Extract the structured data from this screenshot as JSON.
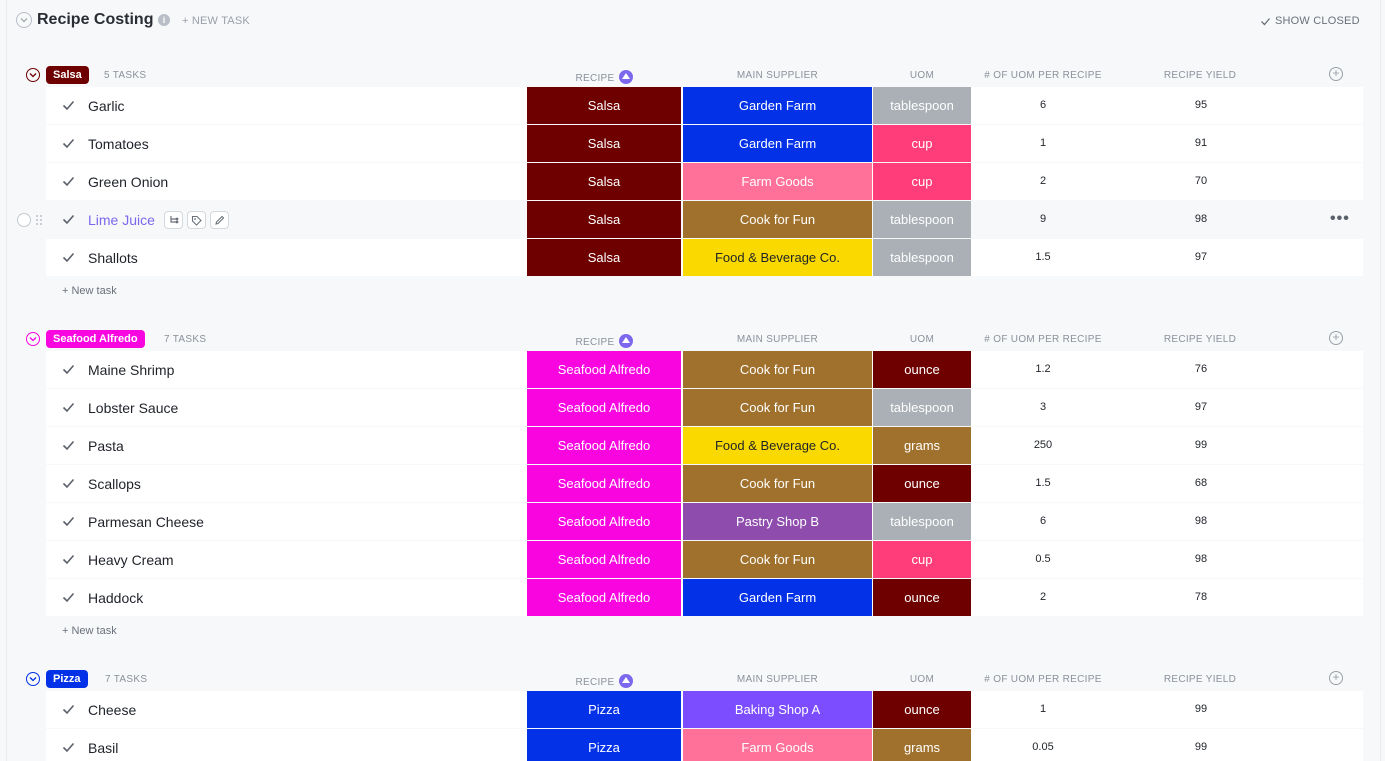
{
  "page": {
    "title": "Recipe Costing",
    "new_task_label": "+ NEW TASK",
    "show_closed_label": "SHOW CLOSED",
    "info_label": "i"
  },
  "columns": {
    "recipe": "RECIPE",
    "supplier": "MAIN SUPPLIER",
    "uom": "UOM",
    "uom_per_recipe": "# OF UOM PER RECIPE",
    "yield": "RECIPE YIELD",
    "add": "+"
  },
  "new_task_row_label": "+ New task",
  "row_menu_label": "•••",
  "colors": {
    "salsa": "#6e0000",
    "seafood": "#f805e0",
    "pizza": "#0231e8",
    "garden_farm": "#0231e8",
    "farm_goods": "#ff7199",
    "cook_for_fun": "#a0712c",
    "food_beverage": "#f9d900",
    "pastry_shop_b": "#8e4cad",
    "baking_shop_a": "#7c4dff",
    "tablespoon": "#aab0b6",
    "cup": "#ff3d7a",
    "ounce": "#6e0000",
    "grams": "#a0712c"
  },
  "groups": [
    {
      "name": "Salsa",
      "count": "5 TASKS",
      "color": "#6e0000",
      "tasks": [
        {
          "name": "Garlic",
          "recipe": "Salsa",
          "supplier": "Garden Farm",
          "uom": "tablespoon",
          "per_recipe": "6",
          "yield": "95"
        },
        {
          "name": "Tomatoes",
          "recipe": "Salsa",
          "supplier": "Garden Farm",
          "uom": "cup",
          "per_recipe": "1",
          "yield": "91"
        },
        {
          "name": "Green Onion",
          "recipe": "Salsa",
          "supplier": "Farm Goods",
          "uom": "cup",
          "per_recipe": "2",
          "yield": "70"
        },
        {
          "name": "Lime Juice",
          "recipe": "Salsa",
          "supplier": "Cook for Fun",
          "uom": "tablespoon",
          "per_recipe": "9",
          "yield": "98"
        },
        {
          "name": "Shallots",
          "recipe": "Salsa",
          "supplier": "Food & Beverage Co.",
          "uom": "tablespoon",
          "per_recipe": "1.5",
          "yield": "97"
        }
      ]
    },
    {
      "name": "Seafood Alfredo",
      "count": "7 TASKS",
      "color": "#f805e0",
      "tasks": [
        {
          "name": "Maine Shrimp",
          "recipe": "Seafood Alfredo",
          "supplier": "Cook for Fun",
          "uom": "ounce",
          "per_recipe": "1.2",
          "yield": "76"
        },
        {
          "name": "Lobster Sauce",
          "recipe": "Seafood Alfredo",
          "supplier": "Cook for Fun",
          "uom": "tablespoon",
          "per_recipe": "3",
          "yield": "97"
        },
        {
          "name": "Pasta",
          "recipe": "Seafood Alfredo",
          "supplier": "Food & Beverage Co.",
          "uom": "grams",
          "per_recipe": "250",
          "yield": "99"
        },
        {
          "name": "Scallops",
          "recipe": "Seafood Alfredo",
          "supplier": "Cook for Fun",
          "uom": "ounce",
          "per_recipe": "1.5",
          "yield": "68"
        },
        {
          "name": "Parmesan Cheese",
          "recipe": "Seafood Alfredo",
          "supplier": "Pastry Shop B",
          "uom": "tablespoon",
          "per_recipe": "6",
          "yield": "98"
        },
        {
          "name": "Heavy Cream",
          "recipe": "Seafood Alfredo",
          "supplier": "Cook for Fun",
          "uom": "cup",
          "per_recipe": "0.5",
          "yield": "98"
        },
        {
          "name": "Haddock",
          "recipe": "Seafood Alfredo",
          "supplier": "Garden Farm",
          "uom": "ounce",
          "per_recipe": "2",
          "yield": "78"
        }
      ]
    },
    {
      "name": "Pizza",
      "count": "7 TASKS",
      "color": "#0231e8",
      "tasks": [
        {
          "name": "Cheese",
          "recipe": "Pizza",
          "supplier": "Baking Shop A",
          "uom": "ounce",
          "per_recipe": "1",
          "yield": "99"
        },
        {
          "name": "Basil",
          "recipe": "Pizza",
          "supplier": "Farm Goods",
          "uom": "grams",
          "per_recipe": "0.05",
          "yield": "99"
        }
      ]
    }
  ]
}
